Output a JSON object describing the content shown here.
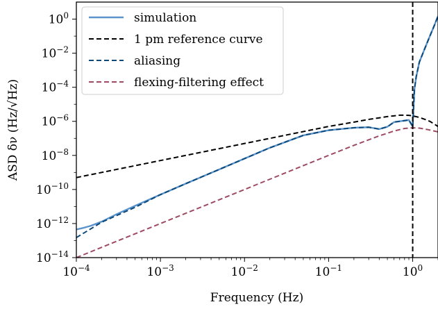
{
  "chart_data": {
    "type": "line",
    "title": "",
    "xlabel": "Frequency (Hz)",
    "ylabel": "ASD δν (Hz/√Hz)",
    "xscale": "log",
    "yscale": "log",
    "xlim": [
      0.0001,
      2
    ],
    "ylim": [
      1e-14,
      10
    ],
    "x_ticks": [
      0.0001,
      0.001,
      0.01,
      0.1,
      1
    ],
    "x_tick_labels": [
      {
        "base": "10",
        "exp": "−4"
      },
      {
        "base": "10",
        "exp": "−3"
      },
      {
        "base": "10",
        "exp": "−2"
      },
      {
        "base": "10",
        "exp": "−1"
      },
      {
        "base": "10",
        "exp": "0"
      }
    ],
    "y_ticks": [
      1e-14,
      1e-12,
      1e-10,
      1e-08,
      1e-06,
      0.0001,
      0.01,
      1
    ],
    "y_tick_labels": [
      {
        "base": "10",
        "exp": "−14"
      },
      {
        "base": "10",
        "exp": "−12"
      },
      {
        "base": "10",
        "exp": "−10"
      },
      {
        "base": "10",
        "exp": "−8"
      },
      {
        "base": "10",
        "exp": "−6"
      },
      {
        "base": "10",
        "exp": "−4"
      },
      {
        "base": "10",
        "exp": "−2"
      },
      {
        "base": "10",
        "exp": "0"
      }
    ],
    "grid": false,
    "legend_position": "top-left",
    "vertical_line": {
      "x": 1,
      "color": "#000000",
      "style": "dashed"
    },
    "series": [
      {
        "name": "simulation",
        "color": "#5b93cc",
        "style": "solid",
        "x": [
          0.0001,
          0.00012,
          0.00015,
          0.0002,
          0.0003,
          0.0005,
          0.001,
          0.002,
          0.005,
          0.01,
          0.02,
          0.05,
          0.1,
          0.2,
          0.3,
          0.4,
          0.5,
          0.6,
          0.7,
          0.8,
          0.9,
          1.0,
          1.05,
          1.1,
          1.2,
          1.4,
          1.6,
          1.8,
          2.0
        ],
        "y": [
          4.5e-13,
          5.5e-13,
          7.5e-13,
          1.3e-12,
          3.5e-12,
          1.1e-11,
          5e-11,
          2.2e-10,
          1.5e-09,
          6.5e-09,
          2.8e-08,
          1.5e-07,
          3e-07,
          4.2e-07,
          4.5e-07,
          3.5e-07,
          4.8e-07,
          9e-07,
          1e-06,
          1.1e-06,
          1.2e-06,
          5e-07,
          8e-05,
          0.0004,
          0.003,
          0.02,
          0.1,
          0.4,
          1.5
        ]
      },
      {
        "name": "1 pm reference curve",
        "color": "#000000",
        "style": "dashed",
        "x": [
          0.0001,
          0.001,
          0.01,
          0.1,
          0.2,
          0.3,
          0.4,
          0.5,
          0.6,
          0.7,
          0.8,
          0.9,
          1.0,
          1.2,
          1.4,
          1.6,
          1.8,
          2.0
        ],
        "y": [
          5e-10,
          5e-09,
          5e-08,
          5e-07,
          9e-07,
          1.3e-06,
          1.6e-06,
          1.9e-06,
          2.1e-06,
          2.3e-06,
          2.3e-06,
          2.25e-06,
          2.1e-06,
          1.7e-06,
          1.3e-06,
          1e-06,
          7e-07,
          5e-07
        ]
      },
      {
        "name": "aliasing",
        "color": "#0d4a7a",
        "style": "dashed",
        "x": [
          0.0001,
          0.0002,
          0.0005,
          0.001,
          0.002,
          0.005,
          0.01,
          0.02,
          0.05,
          0.1,
          0.2,
          0.3,
          0.4,
          0.5,
          0.6,
          0.7,
          0.8,
          0.9,
          1.0,
          1.05,
          1.1,
          1.2,
          1.4,
          1.6,
          1.8,
          2.0
        ],
        "y": [
          1.5e-13,
          1.2e-12,
          9e-12,
          5e-11,
          2.2e-10,
          1.5e-09,
          6.5e-09,
          2.8e-08,
          1.5e-07,
          3e-07,
          4.2e-07,
          4.5e-07,
          3.5e-07,
          4.8e-07,
          9e-07,
          1e-06,
          1.1e-06,
          1.2e-06,
          5e-07,
          8e-05,
          0.0004,
          0.003,
          0.02,
          0.1,
          0.4,
          1.5
        ]
      },
      {
        "name": "flexing-filtering effect",
        "color": "#9e4a62",
        "style": "dashed",
        "x": [
          0.0001,
          0.001,
          0.01,
          0.1,
          0.2,
          0.4,
          0.6,
          0.8,
          1.0,
          1.2,
          1.5,
          2.0
        ],
        "y": [
          1e-14,
          1e-12,
          1e-10,
          1e-08,
          3.9e-08,
          1.4e-07,
          2.7e-07,
          3.8e-07,
          4.2e-07,
          4e-07,
          3.3e-07,
          2.4e-07
        ]
      }
    ]
  }
}
